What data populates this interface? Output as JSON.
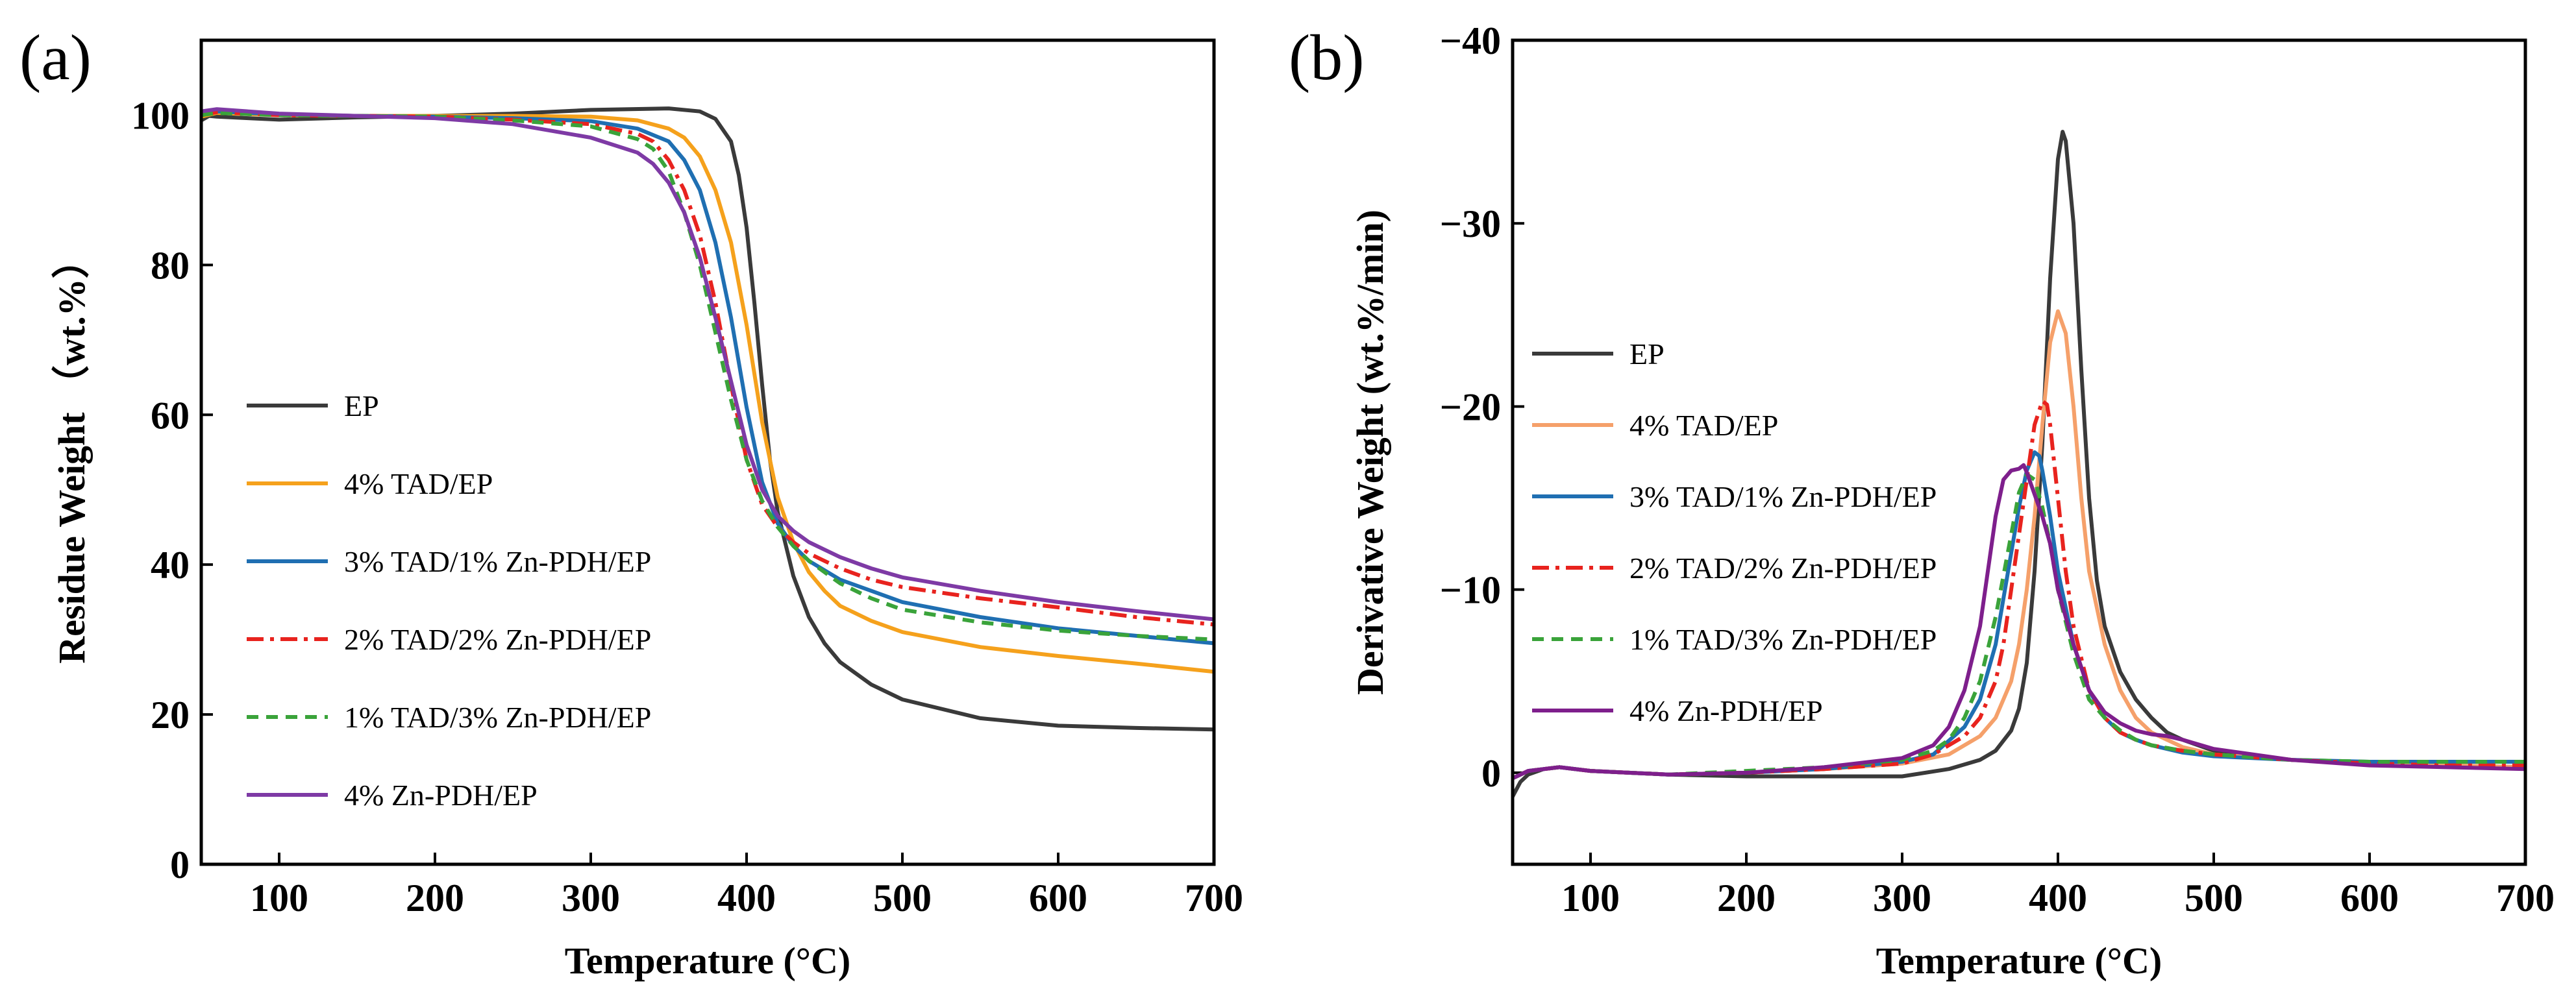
{
  "chart_data": [
    {
      "panel": "(a)",
      "type": "line",
      "xlabel": "Temperature (°C)",
      "ylabel": "Residue Weight （wt.%）",
      "xlim": [
        50,
        700
      ],
      "ylim": [
        0,
        110
      ],
      "xticks": [
        100,
        200,
        300,
        400,
        500,
        600,
        700
      ],
      "yticks": [
        0,
        20,
        40,
        60,
        80,
        100
      ],
      "legend_position": "middle-left",
      "series": [
        {
          "name": "EP",
          "color": "#3a3a3a",
          "dash": "solid",
          "x": [
            50,
            55,
            60,
            80,
            100,
            150,
            200,
            250,
            300,
            350,
            370,
            380,
            390,
            395,
            400,
            405,
            410,
            415,
            420,
            430,
            440,
            450,
            460,
            480,
            500,
            550,
            600,
            650,
            700
          ],
          "y": [
            99.3,
            99.9,
            99.8,
            99.6,
            99.4,
            99.7,
            99.9,
            100.2,
            100.7,
            100.9,
            100.5,
            99.5,
            96.5,
            92,
            85,
            75,
            64,
            54,
            47,
            38.5,
            33,
            29.5,
            27,
            24,
            22,
            19.5,
            18.5,
            18.2,
            18
          ]
        },
        {
          "name": "4% TAD/EP",
          "color": "#f5a11c",
          "dash": "solid",
          "x": [
            50,
            60,
            100,
            150,
            200,
            250,
            300,
            330,
            350,
            360,
            370,
            380,
            390,
            400,
            410,
            420,
            430,
            440,
            450,
            460,
            480,
            500,
            550,
            600,
            650,
            700
          ],
          "y": [
            99.8,
            100.3,
            100,
            99.9,
            99.9,
            99.9,
            99.8,
            99.3,
            98.2,
            97,
            94.5,
            90,
            83,
            72,
            59,
            49,
            43,
            39,
            36.5,
            34.5,
            32.5,
            31,
            29,
            27.8,
            26.8,
            25.7
          ]
        },
        {
          "name": "3% TAD/1% Zn-PDH/EP",
          "color": "#1f6fb2",
          "dash": "solid",
          "x": [
            50,
            60,
            100,
            150,
            200,
            250,
            300,
            330,
            350,
            360,
            370,
            380,
            390,
            400,
            410,
            420,
            430,
            440,
            460,
            480,
            500,
            550,
            600,
            650,
            700
          ],
          "y": [
            100,
            100.5,
            100.1,
            99.9,
            99.8,
            99.6,
            99.2,
            98.2,
            96.5,
            94,
            90,
            83,
            73,
            61,
            51,
            45.5,
            42.5,
            40.5,
            38,
            36.5,
            35,
            33,
            31.5,
            30.5,
            29.5
          ]
        },
        {
          "name": "2% TAD/2% Zn-PDH/EP",
          "color": "#e8231e",
          "dash": "dashdot",
          "x": [
            50,
            60,
            100,
            150,
            200,
            250,
            300,
            330,
            340,
            350,
            360,
            370,
            380,
            390,
            400,
            410,
            420,
            430,
            440,
            460,
            480,
            500,
            550,
            600,
            650,
            700
          ],
          "y": [
            100,
            100.4,
            100,
            99.9,
            99.8,
            99.4,
            98.8,
            97.5,
            96.5,
            94,
            90,
            84,
            75,
            64,
            54,
            48,
            45,
            43,
            41.5,
            39.5,
            38,
            37,
            35.5,
            34.3,
            33,
            32
          ]
        },
        {
          "name": "1% TAD/3% Zn-PDH/EP",
          "color": "#3aa33a",
          "dash": "dash",
          "x": [
            50,
            60,
            100,
            150,
            200,
            250,
            300,
            330,
            340,
            350,
            360,
            370,
            380,
            390,
            400,
            410,
            420,
            430,
            440,
            460,
            480,
            500,
            550,
            600,
            650,
            700
          ],
          "y": [
            100,
            100.3,
            100,
            99.9,
            99.8,
            99.3,
            98.5,
            96.8,
            95.5,
            92.5,
            87,
            80,
            71,
            62,
            54,
            48.5,
            45,
            42.5,
            40.5,
            37.5,
            35.5,
            34,
            32.3,
            31.2,
            30.5,
            30
          ]
        },
        {
          "name": "4% Zn-PDH/EP",
          "color": "#7e3aa5",
          "dash": "solid",
          "x": [
            50,
            60,
            100,
            150,
            200,
            250,
            300,
            330,
            340,
            350,
            360,
            370,
            380,
            390,
            400,
            410,
            420,
            430,
            440,
            460,
            480,
            500,
            550,
            600,
            650,
            700
          ],
          "y": [
            100.5,
            100.8,
            100.2,
            99.9,
            99.6,
            98.8,
            97,
            95,
            93.5,
            91,
            87,
            81,
            73,
            64.5,
            56,
            50,
            46.5,
            44.5,
            43,
            41,
            39.5,
            38.3,
            36.5,
            35,
            33.8,
            32.7
          ]
        }
      ]
    },
    {
      "panel": "(b)",
      "type": "line",
      "xlabel": "Temperature (°C)",
      "ylabel": "Derivative Weight (wt.%/min)",
      "xlim": [
        50,
        700
      ],
      "ylim": [
        5,
        -40
      ],
      "xticks": [
        100,
        200,
        300,
        400,
        500,
        600,
        700
      ],
      "yticks": [
        0,
        -10,
        -20,
        -30,
        -40
      ],
      "legend_position": "middle-left",
      "series": [
        {
          "name": "EP",
          "color": "#3a3a3a",
          "dash": "solid",
          "x": [
            50,
            55,
            60,
            70,
            80,
            100,
            150,
            200,
            250,
            300,
            330,
            350,
            360,
            370,
            375,
            380,
            385,
            390,
            395,
            400,
            403,
            405,
            410,
            415,
            420,
            425,
            430,
            440,
            450,
            460,
            470,
            480,
            500,
            550,
            600,
            650,
            700
          ],
          "y": [
            1.3,
            0.5,
            0.1,
            -0.2,
            -0.3,
            -0.1,
            0.1,
            0.2,
            0.2,
            0.2,
            -0.2,
            -0.7,
            -1.2,
            -2.3,
            -3.5,
            -6,
            -11,
            -18,
            -27,
            -33.5,
            -35,
            -34.5,
            -30,
            -22,
            -15,
            -10.5,
            -8,
            -5.5,
            -4,
            -3,
            -2.2,
            -1.8,
            -1.2,
            -0.7,
            -0.5,
            -0.4,
            -0.3
          ]
        },
        {
          "name": "4% TAD/EP",
          "color": "#f5a06a",
          "dash": "solid",
          "x": [
            50,
            60,
            80,
            100,
            150,
            200,
            250,
            300,
            330,
            350,
            360,
            370,
            375,
            380,
            385,
            390,
            395,
            400,
            405,
            410,
            415,
            420,
            430,
            440,
            450,
            460,
            470,
            480,
            500,
            550,
            600,
            650,
            700
          ],
          "y": [
            0.3,
            -0.1,
            -0.3,
            -0.1,
            0.1,
            0,
            -0.2,
            -0.5,
            -1,
            -2,
            -3,
            -5,
            -7,
            -10,
            -14,
            -19,
            -23.5,
            -25.2,
            -24,
            -20,
            -15,
            -11,
            -7,
            -4.5,
            -3,
            -2.2,
            -1.8,
            -1.4,
            -1,
            -0.7,
            -0.5,
            -0.4,
            -0.3
          ]
        },
        {
          "name": "3% TAD/1% Zn-PDH/EP",
          "color": "#1f6fb2",
          "dash": "solid",
          "x": [
            50,
            60,
            80,
            100,
            150,
            200,
            250,
            300,
            320,
            340,
            350,
            360,
            365,
            370,
            375,
            380,
            385,
            388,
            390,
            395,
            400,
            410,
            420,
            430,
            440,
            450,
            460,
            470,
            480,
            500,
            550,
            600,
            650,
            700
          ],
          "y": [
            0.3,
            -0.1,
            -0.3,
            -0.1,
            0.1,
            0,
            -0.2,
            -0.6,
            -1,
            -2.5,
            -4,
            -7,
            -9.5,
            -12,
            -14.5,
            -16.5,
            -17.5,
            -17.3,
            -16.5,
            -14,
            -11,
            -7,
            -4.5,
            -3,
            -2.2,
            -1.8,
            -1.5,
            -1.3,
            -1.1,
            -0.9,
            -0.7,
            -0.6,
            -0.6,
            -0.6
          ]
        },
        {
          "name": "2% TAD/2% Zn-PDH/EP",
          "color": "#e8231e",
          "dash": "dashdot",
          "x": [
            50,
            60,
            80,
            100,
            150,
            200,
            250,
            300,
            320,
            340,
            350,
            360,
            365,
            370,
            375,
            380,
            385,
            390,
            393,
            395,
            400,
            405,
            410,
            420,
            430,
            440,
            450,
            460,
            480,
            500,
            550,
            600,
            650,
            700
          ],
          "y": [
            0.3,
            -0.1,
            -0.3,
            -0.1,
            0.1,
            0,
            -0.2,
            -0.5,
            -1,
            -2,
            -3,
            -5,
            -7,
            -10,
            -13,
            -16,
            -19,
            -20.3,
            -20.1,
            -19,
            -15,
            -11,
            -8,
            -4.5,
            -3,
            -2.2,
            -1.8,
            -1.5,
            -1.2,
            -1,
            -0.7,
            -0.5,
            -0.4,
            -0.4
          ]
        },
        {
          "name": "1% TAD/3% Zn-PDH/EP",
          "color": "#3aa33a",
          "dash": "dash",
          "x": [
            50,
            60,
            80,
            100,
            150,
            200,
            250,
            300,
            320,
            330,
            340,
            350,
            360,
            370,
            375,
            380,
            385,
            390,
            395,
            400,
            410,
            420,
            430,
            440,
            450,
            460,
            480,
            500,
            550,
            600,
            650,
            700
          ],
          "y": [
            0.3,
            -0.1,
            -0.3,
            -0.1,
            0.1,
            -0.1,
            -0.3,
            -0.7,
            -1.2,
            -1.8,
            -3,
            -5,
            -8.5,
            -13,
            -15.3,
            -16.3,
            -16,
            -14.5,
            -12.5,
            -10,
            -6.5,
            -4,
            -3,
            -2.3,
            -1.8,
            -1.5,
            -1.2,
            -1,
            -0.7,
            -0.6,
            -0.6,
            -0.6
          ]
        },
        {
          "name": "4% Zn-PDH/EP",
          "color": "#7e1f8c",
          "dash": "solid",
          "x": [
            50,
            60,
            80,
            100,
            150,
            200,
            250,
            300,
            320,
            330,
            340,
            350,
            355,
            360,
            365,
            370,
            375,
            378,
            380,
            385,
            390,
            395,
            400,
            410,
            420,
            430,
            440,
            450,
            460,
            470,
            480,
            500,
            550,
            600,
            650,
            700
          ],
          "y": [
            0.3,
            -0.1,
            -0.3,
            -0.1,
            0.1,
            0,
            -0.3,
            -0.8,
            -1.5,
            -2.5,
            -4.5,
            -8,
            -11,
            -14,
            -16,
            -16.5,
            -16.6,
            -16.8,
            -16.4,
            -15.2,
            -14,
            -12.5,
            -10,
            -7,
            -4.5,
            -3.3,
            -2.7,
            -2.3,
            -2.1,
            -2,
            -1.8,
            -1.3,
            -0.7,
            -0.4,
            -0.3,
            -0.2
          ]
        }
      ]
    }
  ]
}
